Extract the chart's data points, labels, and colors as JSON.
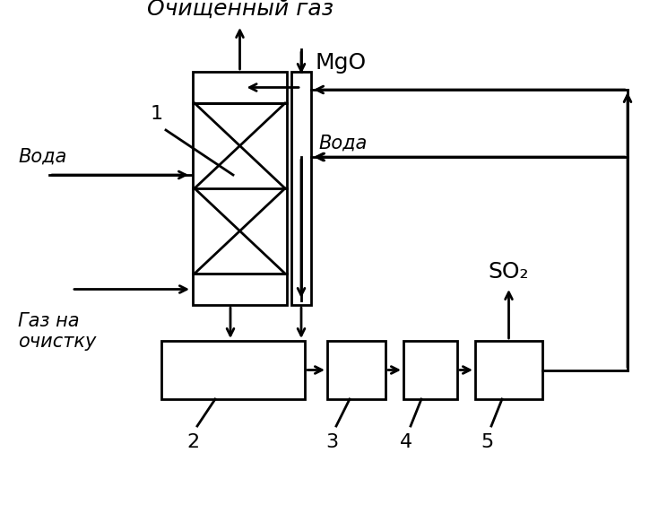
{
  "bg_color": "#ffffff",
  "line_color": "#000000",
  "title_text": "Очищенный газ",
  "label_MgO": "MgO",
  "label_voda1": "Вода",
  "label_voda2": "Вода",
  "label_gaz": "Газ на\nочистку",
  "label_SO2": "SO₂",
  "num1": "1",
  "num2": "2",
  "num3": "3",
  "num4": "4",
  "num5": "5",
  "figsize": [
    7.44,
    5.92
  ],
  "dpi": 100
}
